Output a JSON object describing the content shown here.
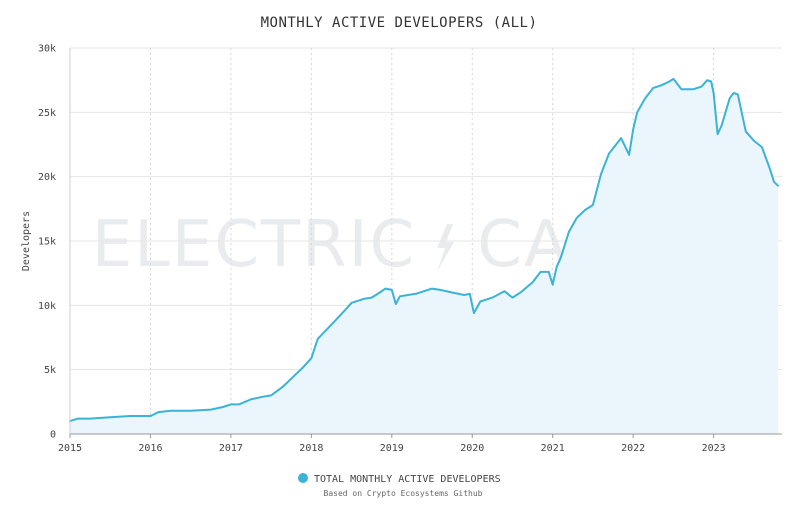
{
  "chart_data": {
    "type": "area",
    "title": "MONTHLY ACTIVE DEVELOPERS (ALL)",
    "ylabel": "Developers",
    "xlabel": "",
    "ylim": [
      0,
      30000
    ],
    "yticks": [
      0,
      5000,
      10000,
      15000,
      20000,
      25000,
      30000
    ],
    "ytick_labels": [
      "0",
      "5k",
      "10k",
      "15k",
      "20k",
      "25k",
      "30k"
    ],
    "xlim": [
      2015.0,
      2023.85
    ],
    "xticks": [
      2015,
      2016,
      2017,
      2018,
      2019,
      2020,
      2021,
      2022,
      2023
    ],
    "xtick_labels": [
      "2015",
      "2016",
      "2017",
      "2018",
      "2019",
      "2020",
      "2021",
      "2022",
      "2023"
    ],
    "grid": true,
    "legend_position": "bottom-center",
    "series": [
      {
        "name": "TOTAL MONTHLY ACTIVE DEVELOPERS",
        "color": "#3ab3d6",
        "fill": "#eaf6fc",
        "x": [
          2015.0,
          2015.1,
          2015.25,
          2015.5,
          2015.75,
          2016.0,
          2016.1,
          2016.25,
          2016.5,
          2016.75,
          2016.9,
          2017.0,
          2017.1,
          2017.25,
          2017.4,
          2017.5,
          2017.65,
          2017.75,
          2017.9,
          2018.0,
          2018.08,
          2018.25,
          2018.4,
          2018.5,
          2018.65,
          2018.75,
          2018.85,
          2018.92,
          2019.0,
          2019.05,
          2019.1,
          2019.2,
          2019.3,
          2019.5,
          2019.6,
          2019.75,
          2019.9,
          2019.97,
          2020.02,
          2020.1,
          2020.25,
          2020.4,
          2020.5,
          2020.6,
          2020.75,
          2020.85,
          2020.95,
          2021.0,
          2021.05,
          2021.1,
          2021.2,
          2021.3,
          2021.4,
          2021.5,
          2021.6,
          2021.7,
          2021.85,
          2021.95,
          2022.0,
          2022.05,
          2022.15,
          2022.25,
          2022.35,
          2022.45,
          2022.5,
          2022.6,
          2022.75,
          2022.85,
          2022.92,
          2022.97,
          2023.0,
          2023.05,
          2023.1,
          2023.2,
          2023.25,
          2023.3,
          2023.4,
          2023.5,
          2023.6,
          2023.7,
          2023.75,
          2023.8
        ],
        "values": [
          1000,
          1200,
          1200,
          1300,
          1400,
          1400,
          1700,
          1800,
          1800,
          1900,
          2100,
          2300,
          2300,
          2700,
          2900,
          3000,
          3700,
          4300,
          5200,
          5900,
          7400,
          8500,
          9500,
          10200,
          10500,
          10600,
          11000,
          11300,
          11200,
          10100,
          10700,
          10800,
          10900,
          11300,
          11200,
          11000,
          10800,
          10900,
          9400,
          10300,
          10600,
          11100,
          10600,
          11000,
          11800,
          12600,
          12600,
          11600,
          13000,
          13700,
          15700,
          16800,
          17400,
          17800,
          20200,
          21800,
          23000,
          21700,
          23700,
          25000,
          26100,
          26900,
          27100,
          27400,
          27600,
          26800,
          26800,
          27000,
          27500,
          27400,
          26500,
          23300,
          24000,
          26100,
          26500,
          26400,
          23500,
          22800,
          22300,
          20600,
          19600,
          19300
        ]
      }
    ],
    "source_note": "Based on Crypto Ecosystems Github",
    "watermark_left": "ELECTRIC",
    "watermark_right": "CAPITAL"
  }
}
